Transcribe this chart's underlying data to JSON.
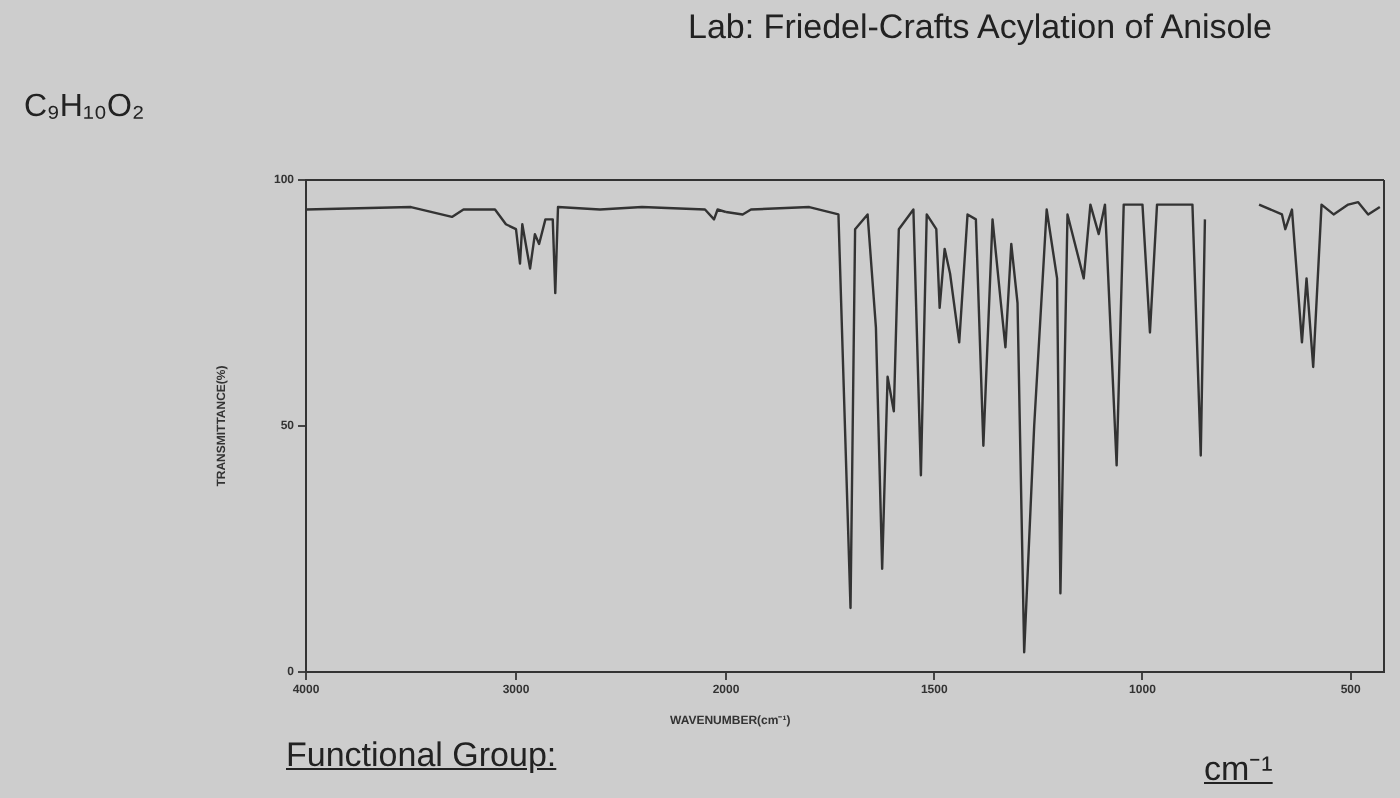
{
  "chart_data": [
    {
      "type": "line",
      "subtitle": "C₉H₁₀O₂",
      "ylabel": "TRANSMITTANCE(%)",
      "xlabel": "WAVENUMBER(cm⁻¹)",
      "x": [
        4000,
        3500,
        3305,
        3250,
        3100,
        3048,
        3000,
        2981,
        2970,
        2933,
        2910,
        2890,
        2860,
        2825,
        2813,
        2800,
        2600,
        2400,
        2100,
        2057,
        2040,
        2000
      ],
      "series": [
        {
          "color": "#333333",
          "values": [
            94,
            94.5,
            92.5,
            94,
            94,
            91,
            90,
            83,
            91,
            82,
            89,
            87,
            92,
            92,
            77,
            94.5,
            94,
            94.5,
            94,
            92,
            94,
            93.5
          ]
        }
      ],
      "xlim": [
        4000,
        2000
      ],
      "xticks": [
        4000,
        3000,
        2000
      ],
      "ylim": [
        0,
        100
      ],
      "yticks": [
        0,
        50,
        100
      ],
      "grid": false,
      "legend": false,
      "marker": "none",
      "line_style": "solid"
    },
    {
      "type": "line",
      "title": "Lab: Friedel-Crafts Acylation of Anisole",
      "annotations": [
        "Functional Group:",
        "cm⁻¹"
      ],
      "x": [
        2000,
        1960,
        1940,
        1800,
        1730,
        1701,
        1690,
        1660,
        1640,
        1625,
        1612,
        1597,
        1585,
        1550,
        1532,
        1518,
        1495,
        1487,
        1475,
        1462,
        1440,
        1420,
        1400,
        1382,
        1360,
        1340,
        1329,
        1315,
        1300,
        1284,
        1260,
        1230,
        1205,
        1197,
        1180,
        1141,
        1125,
        1105,
        1090,
        1062,
        1045,
        1000,
        982,
        965,
        880,
        860,
        850,
        800,
        720,
        665,
        657,
        641,
        617,
        606,
        590,
        570,
        541,
        506,
        482,
        458,
        430
      ],
      "series": [
        {
          "color": "#333333",
          "values": [
            93.5,
            93,
            94,
            94.5,
            93,
            13,
            90,
            93,
            70,
            21,
            60,
            53,
            90,
            94,
            40,
            93,
            90,
            74,
            86,
            81,
            67,
            93,
            92,
            46,
            92,
            75,
            66,
            87,
            75,
            4,
            50,
            94,
            80,
            16,
            93,
            80,
            95,
            89,
            95,
            42,
            95,
            95,
            69,
            95,
            95,
            44,
            92,
            null,
            95,
            93,
            90,
            94,
            67,
            80,
            62,
            95,
            93,
            95,
            95.5,
            93,
            94.5
          ]
        }
      ],
      "xlim": [
        2000,
        420
      ],
      "xticks": [
        1500,
        1000,
        500
      ],
      "ylim": [
        0,
        100
      ],
      "tick_labels": "x",
      "grid": false,
      "legend": false,
      "marker": "none",
      "line_style": "solid"
    }
  ]
}
